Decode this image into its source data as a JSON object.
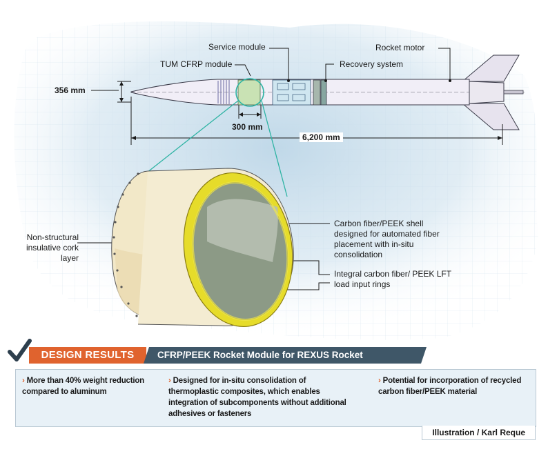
{
  "labels": {
    "service_module": "Service module",
    "rocket_motor": "Rocket motor",
    "tum_cfrp_module": "TUM CFRP module",
    "recovery_system": "Recovery system",
    "dia_356": "356 mm",
    "len_300": "300 mm",
    "len_6200": "6,200 mm",
    "cork_layer": "Non-structural insulative cork layer",
    "cf_shell": "Carbon fiber/PEEK shell designed for automated fiber placement with in-situ consolidation",
    "load_rings": "Integral carbon fiber/ PEEK LFT load input rings"
  },
  "design_results": {
    "tag": "DESIGN RESULTS",
    "title": "CFRP/PEEK Rocket Module for REXUS Rocket",
    "items": [
      "More than 40% weight reduction compared to aluminum",
      "Designed for in-situ consolidation of thermoplastic composites, which enables integration of subcompo­nents without additional adhesives or fasteners",
      "Potential for incorporation of recycled carbon fiber/PEEK material"
    ]
  },
  "credit": "Illustration / Karl Reque",
  "colors": {
    "orange": "#e0632e",
    "slate": "#3f5768",
    "check": "#2d3f4d",
    "teal": "#2db3a3",
    "rocket_body": "#f1eef7",
    "cork": "#f2e8c8",
    "ring": "#e6dc2a",
    "shell_inner": "#8c9a86"
  }
}
